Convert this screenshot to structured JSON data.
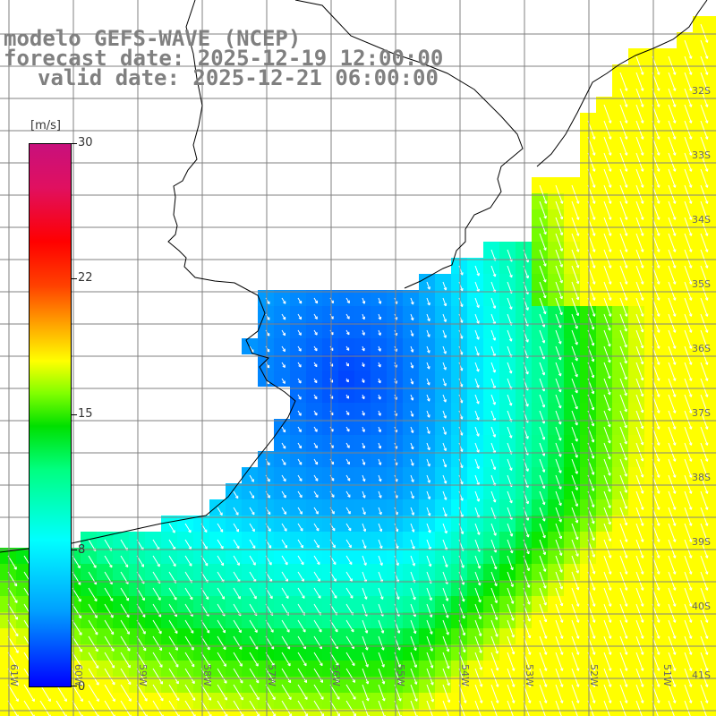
{
  "titles": {
    "line1": "modelo GEFS-WAVE (NCEP)",
    "line2": "forecast date: 2025-12-19 12:00:00",
    "line3": "valid date: 2025-12-21 06:00:00"
  },
  "colorbar": {
    "unit": "[m/s]",
    "ticks": [
      "30",
      "22",
      "15",
      "8",
      "0"
    ],
    "min": 0,
    "max": 30
  },
  "lat_labels": [
    "32S",
    "33S",
    "34S",
    "35S",
    "36S",
    "37S",
    "38S",
    "39S",
    "40S",
    "41S"
  ],
  "lon_labels": [
    "61W",
    "60W",
    "59W",
    "58W",
    "57W",
    "56W",
    "55W",
    "54W",
    "53W",
    "52W",
    "51W"
  ],
  "colors": {
    "land": "#ffffff",
    "grid": "#808080",
    "coast": "#000000",
    "arrow": "#ffffff",
    "title": "#808080"
  }
}
